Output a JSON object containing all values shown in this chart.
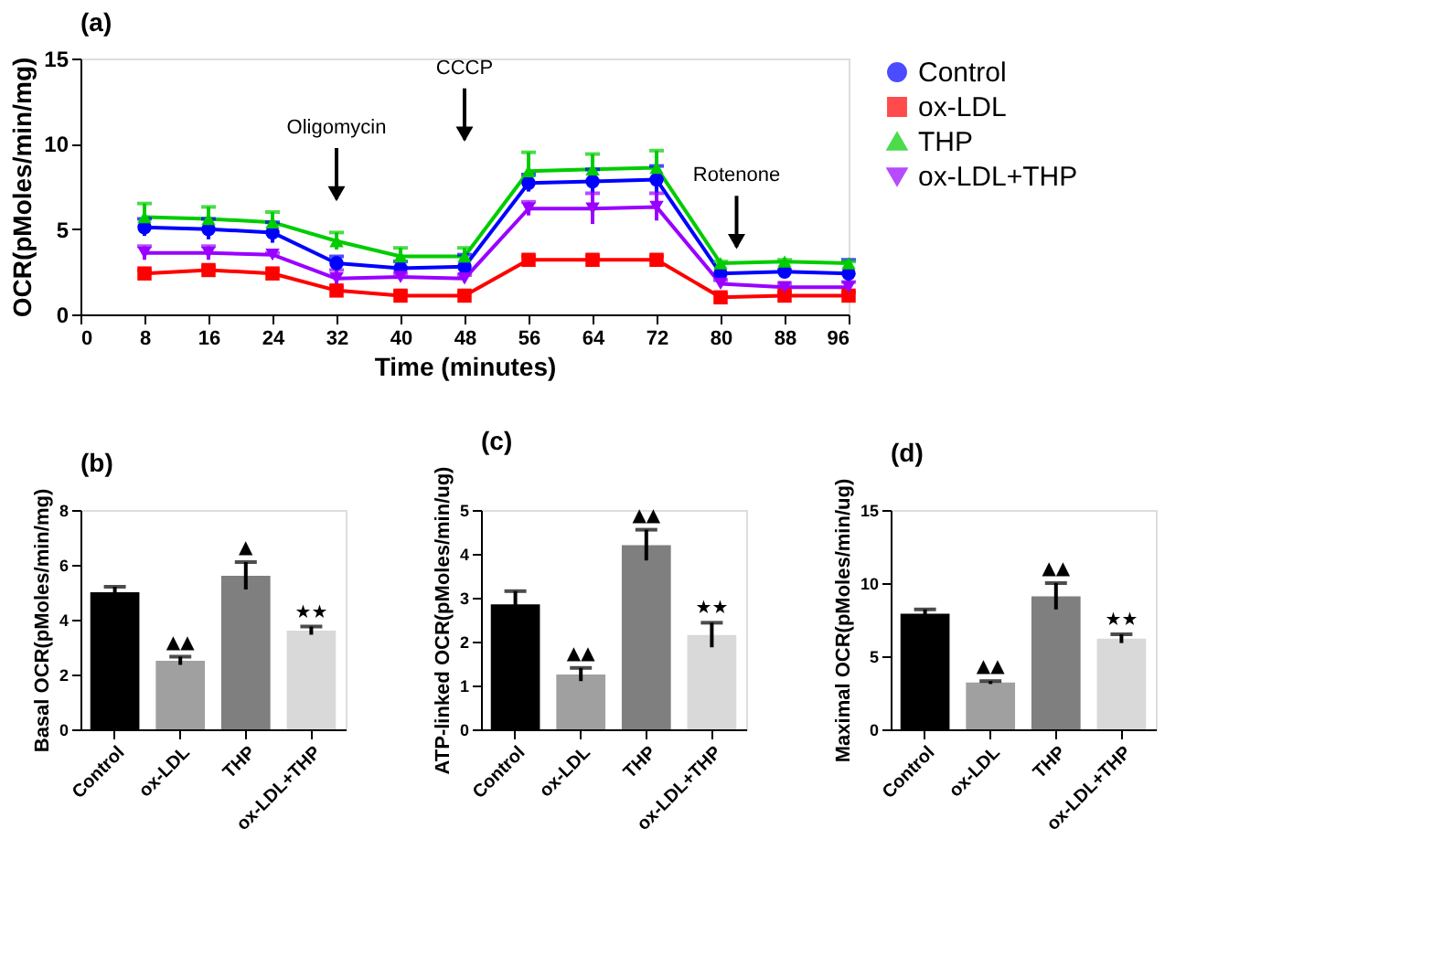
{
  "chart_data": [
    {
      "type": "line",
      "title": "(a)",
      "xlabel": "Time (minutes)",
      "ylabel": "OCR(pMoles/min/mg)",
      "x": [
        8,
        16,
        24,
        32,
        40,
        48,
        56,
        64,
        72,
        80,
        88,
        96
      ],
      "xlim": [
        0,
        96
      ],
      "xticks": [
        0,
        8,
        16,
        24,
        32,
        40,
        48,
        56,
        64,
        72,
        80,
        88,
        96
      ],
      "ylim": [
        0,
        15
      ],
      "yticks": [
        0,
        5,
        10,
        15
      ],
      "grid": false,
      "legend": "right",
      "series": [
        {
          "name": "Control",
          "color": "#0000ff",
          "marker": "circle",
          "values": [
            5.1,
            5.0,
            4.8,
            3.0,
            2.7,
            2.8,
            7.7,
            7.8,
            7.9,
            2.4,
            2.5,
            2.4
          ],
          "errors": [
            0.5,
            0.6,
            0.6,
            0.4,
            0.4,
            0.7,
            0.5,
            0.7,
            0.8,
            null,
            0.1,
            0.8
          ]
        },
        {
          "name": "ox-LDL",
          "color": "#ff0000",
          "marker": "square",
          "values": [
            2.4,
            2.6,
            2.4,
            1.4,
            1.1,
            1.1,
            3.2,
            3.2,
            3.2,
            1.0,
            1.1,
            1.1
          ],
          "errors": [
            0.2,
            0.2,
            0.2,
            0.2,
            0.2,
            0.2,
            0.2,
            0.2,
            0.2,
            0.2,
            0.2,
            0.2
          ]
        },
        {
          "name": "THP",
          "color": "#00cc00",
          "marker": "triangle",
          "values": [
            5.7,
            5.6,
            5.4,
            4.3,
            3.4,
            3.4,
            8.4,
            8.5,
            8.6,
            3.0,
            3.1,
            3.0
          ],
          "errors": [
            0.8,
            0.7,
            0.6,
            0.5,
            0.5,
            0.5,
            1.1,
            0.9,
            1.0,
            0.1,
            0.1,
            0.1
          ]
        },
        {
          "name": "ox-LDL+THP",
          "color": "#9900ff",
          "marker": "triangle-down",
          "values": [
            3.6,
            3.6,
            3.5,
            2.1,
            2.2,
            2.1,
            6.2,
            6.2,
            6.3,
            1.8,
            1.6,
            1.6
          ],
          "errors": [
            0.4,
            0.4,
            0.1,
            0.5,
            0.2,
            0.2,
            0.4,
            0.9,
            0.8,
            0.2,
            0.2,
            0.3
          ]
        }
      ],
      "ref_lines": [
        {
          "axis": "x",
          "value": 32,
          "label": "Oligomycin"
        },
        {
          "axis": "x",
          "value": 48,
          "label": "CCCP"
        },
        {
          "axis": "x",
          "value": 82,
          "label": "Rotenone"
        }
      ]
    },
    {
      "type": "bar",
      "title": "(b)",
      "ylabel": "Basal OCR(pMoles/min/mg)",
      "categories": [
        "Control",
        "ox-LDL",
        "THP",
        "ox-LDL+THP"
      ],
      "values": [
        5.0,
        2.5,
        5.6,
        3.6
      ],
      "errors": [
        0.2,
        0.15,
        0.5,
        0.15
      ],
      "colors": [
        "#000000",
        "#a0a0a0",
        "#7f7f7f",
        "#d9d9d9"
      ],
      "ylim": [
        0,
        8
      ],
      "yticks": [
        0,
        2,
        4,
        6,
        8
      ],
      "grid": false,
      "annotations": [
        {
          "text": "▲▲",
          "x": "ox-LDL",
          "y": 2.65
        },
        {
          "text": "▲",
          "x": "THP",
          "y": 6.1
        },
        {
          "text": "★★",
          "x": "ox-LDL+THP",
          "y": 3.75
        }
      ]
    },
    {
      "type": "bar",
      "title": "(c)",
      "ylabel": "ATP-linked OCR(pMoles/min/ug)",
      "categories": [
        "Control",
        "ox-LDL",
        "THP",
        "ox-LDL+THP"
      ],
      "values": [
        2.85,
        1.25,
        4.2,
        2.15
      ],
      "errors": [
        0.3,
        0.15,
        0.35,
        0.28
      ],
      "colors": [
        "#000000",
        "#a0a0a0",
        "#7f7f7f",
        "#d9d9d9"
      ],
      "ylim": [
        0,
        5
      ],
      "yticks": [
        0,
        1,
        2,
        3,
        4,
        5
      ],
      "grid": false,
      "annotations": [
        {
          "text": "▲▲",
          "x": "ox-LDL",
          "y": 1.4
        },
        {
          "text": "▲▲",
          "x": "THP",
          "y": 4.55
        },
        {
          "text": "★★",
          "x": "ox-LDL+THP",
          "y": 2.43
        }
      ]
    },
    {
      "type": "bar",
      "title": "(d)",
      "ylabel": "Maximal OCR(pMoles/min/ug)",
      "categories": [
        "Control",
        "ox-LDL",
        "THP",
        "ox-LDL+THP"
      ],
      "values": [
        7.9,
        3.2,
        9.1,
        6.2
      ],
      "errors": [
        0.3,
        0.1,
        0.9,
        0.3
      ],
      "colors": [
        "#000000",
        "#a0a0a0",
        "#7f7f7f",
        "#d9d9d9"
      ],
      "ylim": [
        0,
        15
      ],
      "yticks": [
        0,
        5,
        10,
        15
      ],
      "grid": false,
      "annotations": [
        {
          "text": "▲▲",
          "x": "ox-LDL",
          "y": 3.3
        },
        {
          "text": "▲▲",
          "x": "THP",
          "y": 10.0
        },
        {
          "text": "★★",
          "x": "ox-LDL+THP",
          "y": 6.5
        }
      ]
    }
  ]
}
